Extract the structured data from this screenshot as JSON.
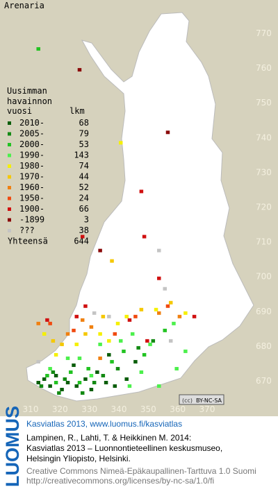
{
  "title": "Arenaria",
  "legend": {
    "heading": [
      "Uusimman",
      "havainnon"
    ],
    "col_headers": [
      "vuosi",
      "lkm"
    ],
    "rows": [
      {
        "label": "2010-",
        "count": 68,
        "color": "#0b5e0b",
        "cells": [
          [
            312,
            669
          ],
          [
            314,
            670
          ],
          [
            316,
            668
          ],
          [
            318,
            671
          ],
          [
            320,
            667
          ],
          [
            322,
            669
          ],
          [
            325,
            668
          ],
          [
            328,
            670
          ],
          [
            330,
            667
          ],
          [
            332,
            672
          ],
          [
            335,
            669
          ],
          [
            338,
            668
          ],
          [
            342,
            670
          ],
          [
            345,
            675
          ],
          [
            336,
            677
          ],
          [
            324,
            674
          ]
        ]
      },
      {
        "label": "2005-",
        "count": 79,
        "color": "#138a13",
        "cells": [
          [
            313,
            668
          ],
          [
            317,
            672
          ],
          [
            321,
            670
          ],
          [
            327,
            666
          ],
          [
            331,
            669
          ],
          [
            334,
            671
          ],
          [
            339,
            673
          ],
          [
            346,
            679
          ],
          [
            351,
            681
          ],
          [
            319,
            666
          ]
        ]
      },
      {
        "label": "2000-",
        "count": 53,
        "color": "#22c322",
        "cells": [
          [
            315,
            671
          ],
          [
            323,
            672
          ],
          [
            329,
            673
          ],
          [
            337,
            675
          ],
          [
            341,
            678
          ],
          [
            348,
            677
          ],
          [
            355,
            684
          ],
          [
            318,
            669
          ],
          [
            326,
            669
          ],
          [
            312,
            765
          ]
        ]
      },
      {
        "label": "1990-",
        "count": 143,
        "color": "#4cf04c",
        "cells": [
          [
            316,
            673
          ],
          [
            326,
            676
          ],
          [
            333,
            680
          ],
          [
            340,
            681
          ],
          [
            344,
            683
          ],
          [
            350,
            680
          ],
          [
            347,
            672
          ],
          [
            358,
            686
          ],
          [
            362,
            678
          ],
          [
            330,
            671
          ],
          [
            353,
            668
          ],
          [
            322,
            676
          ],
          [
            343,
            668
          ],
          [
            359,
            673
          ]
        ]
      },
      {
        "label": "1980-",
        "count": 74,
        "color": "#f5f000",
        "cells": [
          [
            318,
            677
          ],
          [
            325,
            680
          ],
          [
            333,
            683
          ],
          [
            339,
            686
          ],
          [
            342,
            688
          ],
          [
            340,
            738
          ],
          [
            352,
            690
          ],
          [
            362,
            689
          ],
          [
            314,
            683
          ],
          [
            336,
            681
          ]
        ]
      },
      {
        "label": "1970-",
        "count": 44,
        "color": "#f5c800",
        "cells": [
          [
            320,
            680
          ],
          [
            328,
            683
          ],
          [
            334,
            688
          ],
          [
            347,
            690
          ],
          [
            357,
            692
          ],
          [
            317,
            681
          ],
          [
            337,
            704
          ]
        ]
      },
      {
        "label": "1960-",
        "count": 52,
        "color": "#f08010",
        "cells": [
          [
            322,
            683
          ],
          [
            330,
            685
          ],
          [
            312,
            686
          ],
          [
            353,
            689
          ],
          [
            360,
            688
          ],
          [
            333,
            676
          ],
          [
            327,
            687
          ]
        ]
      },
      {
        "label": "1950-",
        "count": 24,
        "color": "#f04a10",
        "cells": [
          [
            324,
            684
          ],
          [
            338,
            683
          ],
          [
            356,
            691
          ],
          [
            316,
            686
          ],
          [
            345,
            688
          ]
        ]
      },
      {
        "label": "1900-",
        "count": 66,
        "color": "#d01010",
        "cells": [
          [
            315,
            687
          ],
          [
            325,
            688
          ],
          [
            343,
            687
          ],
          [
            347,
            724
          ],
          [
            327,
            711
          ],
          [
            353,
            699
          ],
          [
            365,
            688
          ],
          [
            348,
            711
          ],
          [
            349,
            681
          ],
          [
            328,
            691
          ]
        ]
      },
      {
        "label": "-1899",
        "count": 3,
        "color": "#8a0a0a",
        "cells": [
          [
            326,
            759
          ],
          [
            356,
            741
          ],
          [
            333,
            707
          ]
        ]
      },
      {
        "label": "???",
        "count": 38,
        "color": "#c4c4c4",
        "cells": [
          [
            331,
            689
          ],
          [
            336,
            688
          ],
          [
            355,
            696
          ],
          [
            357,
            681
          ],
          [
            353,
            707
          ],
          [
            312,
            675
          ]
        ]
      }
    ],
    "total": {
      "label": "Yhteensä",
      "count": 644
    }
  },
  "axes": {
    "x_ticks": [
      310,
      320,
      330,
      340,
      350,
      360,
      370
    ],
    "y_ticks": [
      770,
      760,
      750,
      740,
      730,
      720,
      710,
      700,
      690,
      680,
      670
    ]
  },
  "license_badge": "BY-NC-SA",
  "footer": {
    "logo": "LUOMUS",
    "headline": "Kasviatlas 2013, www.luomus.fi/kasviatlas",
    "lines": [
      "Lampinen, R., Lahti, T. & Heikkinen M. 2014:",
      "Kasviatlas 2013 – Luonnontieteellinen keskusmuseo,",
      "Helsingin Yliopisto, Helsinki."
    ],
    "license": [
      "Creative Commons Nimeä-Epäkaupallinen-Tarttuva 1.0 Suomi",
      "http://creativecommons.org/licenses/by-nc-sa/1.0/fi"
    ]
  }
}
